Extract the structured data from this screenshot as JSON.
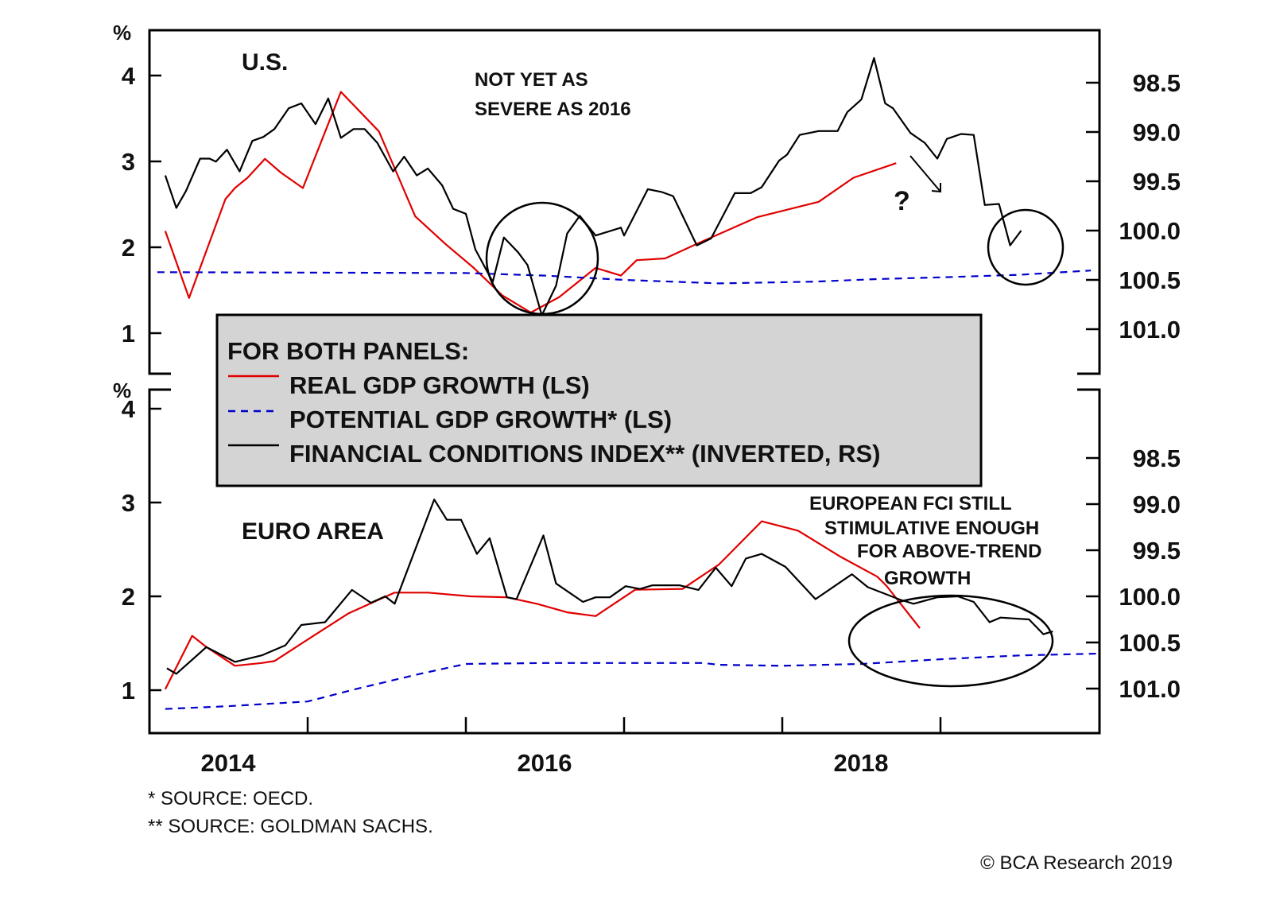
{
  "chart_data": [
    {
      "type": "line",
      "panel_title": "U.S.",
      "left_unit": "%",
      "left_ticks": [
        "4",
        "3",
        "2",
        "1"
      ],
      "right_ticks": [
        "98.5",
        "99.0",
        "99.5",
        "100.0",
        "100.5",
        "101.0"
      ],
      "right_axis_inverted": true,
      "xlim": [
        2014,
        2020
      ],
      "annotations": [
        "NOT YET AS",
        "SEVERE AS 2016",
        "?"
      ],
      "series": [
        {
          "key": "real_gdp",
          "axis": "left",
          "color": "#e00000",
          "style": "solid",
          "points": [
            [
              2014.1,
              2.19
            ],
            [
              2014.25,
              1.41
            ],
            [
              2014.48,
              2.56
            ],
            [
              2014.54,
              2.69
            ],
            [
              2014.62,
              2.81
            ],
            [
              2014.73,
              3.03
            ],
            [
              2014.83,
              2.87
            ],
            [
              2014.97,
              2.69
            ],
            [
              2015.21,
              3.81
            ],
            [
              2015.45,
              3.35
            ],
            [
              2015.68,
              2.36
            ],
            [
              2015.87,
              2.04
            ],
            [
              2016.05,
              1.76
            ],
            [
              2016.23,
              1.44
            ],
            [
              2016.41,
              1.24
            ],
            [
              2016.59,
              1.42
            ],
            [
              2016.82,
              1.76
            ],
            [
              2016.98,
              1.67
            ],
            [
              2017.08,
              1.85
            ],
            [
              2017.26,
              1.87
            ],
            [
              2017.46,
              2.04
            ],
            [
              2017.84,
              2.35
            ],
            [
              2018.23,
              2.53
            ],
            [
              2018.45,
              2.81
            ],
            [
              2018.72,
              2.98
            ]
          ]
        },
        {
          "key": "potential_gdp",
          "axis": "left",
          "color": "#0000cc",
          "style": "dashed",
          "points": [
            [
              2014.05,
              1.71
            ],
            [
              2016.0,
              1.7
            ],
            [
              2016.5,
              1.67
            ],
            [
              2017.0,
              1.62
            ],
            [
              2017.6,
              1.58
            ],
            [
              2018.2,
              1.6
            ],
            [
              2018.6,
              1.63
            ],
            [
              2019.0,
              1.65
            ],
            [
              2019.5,
              1.68
            ],
            [
              2019.95,
              1.73
            ]
          ]
        },
        {
          "key": "fci",
          "axis": "right",
          "color": "#000000",
          "style": "solid",
          "points": [
            [
              2014.1,
              99.44
            ],
            [
              2014.17,
              99.77
            ],
            [
              2014.23,
              99.6
            ],
            [
              2014.32,
              99.27
            ],
            [
              2014.38,
              99.27
            ],
            [
              2014.42,
              99.3
            ],
            [
              2014.49,
              99.18
            ],
            [
              2014.57,
              99.4
            ],
            [
              2014.65,
              99.09
            ],
            [
              2014.72,
              99.05
            ],
            [
              2014.79,
              98.97
            ],
            [
              2014.88,
              98.76
            ],
            [
              2014.96,
              98.71
            ],
            [
              2015.05,
              98.92
            ],
            [
              2015.13,
              98.66
            ],
            [
              2015.21,
              99.06
            ],
            [
              2015.29,
              98.97
            ],
            [
              2015.36,
              98.97
            ],
            [
              2015.44,
              99.11
            ],
            [
              2015.54,
              99.4
            ],
            [
              2015.61,
              99.25
            ],
            [
              2015.69,
              99.44
            ],
            [
              2015.76,
              99.37
            ],
            [
              2015.85,
              99.54
            ],
            [
              2015.92,
              99.78
            ],
            [
              2016.0,
              99.83
            ],
            [
              2016.06,
              100.19
            ],
            [
              2016.17,
              100.52
            ],
            [
              2016.24,
              100.07
            ],
            [
              2016.33,
              100.22
            ],
            [
              2016.39,
              100.35
            ],
            [
              2016.48,
              100.86
            ],
            [
              2016.57,
              100.56
            ],
            [
              2016.64,
              100.03
            ],
            [
              2016.72,
              99.85
            ],
            [
              2016.82,
              100.05
            ],
            [
              2016.98,
              99.97
            ],
            [
              2017.0,
              100.05
            ],
            [
              2017.15,
              99.58
            ],
            [
              2017.24,
              99.61
            ],
            [
              2017.31,
              99.65
            ],
            [
              2017.46,
              100.15
            ],
            [
              2017.55,
              100.08
            ],
            [
              2017.7,
              99.62
            ],
            [
              2017.8,
              99.62
            ],
            [
              2017.87,
              99.56
            ],
            [
              2017.98,
              99.29
            ],
            [
              2018.03,
              99.23
            ],
            [
              2018.11,
              99.03
            ],
            [
              2018.23,
              98.99
            ],
            [
              2018.35,
              98.99
            ],
            [
              2018.41,
              98.8
            ],
            [
              2018.5,
              98.67
            ],
            [
              2018.58,
              98.25
            ],
            [
              2018.65,
              98.71
            ],
            [
              2018.7,
              98.76
            ],
            [
              2018.81,
              99.01
            ],
            [
              2018.9,
              99.11
            ],
            [
              2018.98,
              99.27
            ],
            [
              2019.04,
              99.07
            ],
            [
              2019.13,
              99.02
            ],
            [
              2019.21,
              99.03
            ],
            [
              2019.28,
              99.74
            ],
            [
              2019.37,
              99.73
            ],
            [
              2019.44,
              100.15
            ],
            [
              2019.51,
              100.0
            ]
          ]
        }
      ]
    },
    {
      "type": "line",
      "panel_title": "EURO AREA",
      "left_unit": "%",
      "left_ticks": [
        "4",
        "3",
        "2",
        "1"
      ],
      "right_ticks": [
        "98.5",
        "99.0",
        "99.5",
        "100.0",
        "100.5",
        "101.0"
      ],
      "right_axis_inverted": true,
      "xlim": [
        2014,
        2020
      ],
      "x_tick_labels": [
        "2014",
        "2016",
        "2018"
      ],
      "annotations": [
        "EUROPEAN FCI STILL",
        "STIMULATIVE ENOUGH",
        "FOR ABOVE-TREND",
        "GROWTH"
      ],
      "series": [
        {
          "key": "real_gdp",
          "axis": "left",
          "color": "#e00000",
          "style": "solid",
          "points": [
            [
              2014.1,
              1.01
            ],
            [
              2014.27,
              1.58
            ],
            [
              2014.36,
              1.46
            ],
            [
              2014.54,
              1.26
            ],
            [
              2014.71,
              1.29
            ],
            [
              2014.79,
              1.31
            ],
            [
              2015.0,
              1.54
            ],
            [
              2015.26,
              1.82
            ],
            [
              2015.55,
              2.04
            ],
            [
              2015.76,
              2.04
            ],
            [
              2016.03,
              2.0
            ],
            [
              2016.26,
              1.99
            ],
            [
              2016.45,
              1.92
            ],
            [
              2016.64,
              1.83
            ],
            [
              2016.82,
              1.79
            ],
            [
              2017.07,
              2.07
            ],
            [
              2017.37,
              2.08
            ],
            [
              2017.6,
              2.34
            ],
            [
              2017.87,
              2.8
            ],
            [
              2018.1,
              2.7
            ],
            [
              2018.37,
              2.42
            ],
            [
              2018.6,
              2.21
            ],
            [
              2018.66,
              2.11
            ],
            [
              2018.87,
              1.66
            ]
          ]
        },
        {
          "key": "potential_gdp",
          "axis": "left",
          "color": "#0000cc",
          "style": "dashed",
          "points": [
            [
              2014.1,
              0.8
            ],
            [
              2014.5,
              0.83
            ],
            [
              2015.0,
              0.88
            ],
            [
              2015.3,
              1.01
            ],
            [
              2015.7,
              1.17
            ],
            [
              2016.0,
              1.28
            ],
            [
              2016.5,
              1.29
            ],
            [
              2017.0,
              1.29
            ],
            [
              2017.5,
              1.29
            ],
            [
              2017.6,
              1.27
            ],
            [
              2018.0,
              1.26
            ],
            [
              2018.5,
              1.28
            ],
            [
              2019.0,
              1.33
            ],
            [
              2019.5,
              1.37
            ],
            [
              2020.0,
              1.39
            ]
          ]
        },
        {
          "key": "fci",
          "axis": "right",
          "color": "#000000",
          "style": "solid",
          "points": [
            [
              2014.11,
              100.78
            ],
            [
              2014.17,
              100.84
            ],
            [
              2014.36,
              100.55
            ],
            [
              2014.54,
              100.71
            ],
            [
              2014.71,
              100.64
            ],
            [
              2014.86,
              100.53
            ],
            [
              2014.96,
              100.31
            ],
            [
              2015.11,
              100.28
            ],
            [
              2015.28,
              99.93
            ],
            [
              2015.4,
              100.07
            ],
            [
              2015.49,
              100.0
            ],
            [
              2015.55,
              100.08
            ],
            [
              2015.8,
              98.95
            ],
            [
              2015.88,
              99.17
            ],
            [
              2015.97,
              99.17
            ],
            [
              2016.07,
              99.54
            ],
            [
              2016.15,
              99.37
            ],
            [
              2016.26,
              100.01
            ],
            [
              2016.32,
              100.03
            ],
            [
              2016.49,
              99.34
            ],
            [
              2016.57,
              99.86
            ],
            [
              2016.74,
              100.06
            ],
            [
              2016.82,
              100.01
            ],
            [
              2016.91,
              100.01
            ],
            [
              2017.01,
              99.89
            ],
            [
              2017.1,
              99.92
            ],
            [
              2017.18,
              99.88
            ],
            [
              2017.35,
              99.88
            ],
            [
              2017.47,
              99.93
            ],
            [
              2017.58,
              99.69
            ],
            [
              2017.68,
              99.89
            ],
            [
              2017.77,
              99.59
            ],
            [
              2017.87,
              99.54
            ],
            [
              2018.02,
              99.68
            ],
            [
              2018.21,
              100.03
            ],
            [
              2018.44,
              99.76
            ],
            [
              2018.54,
              99.9
            ],
            [
              2018.75,
              100.04
            ],
            [
              2018.83,
              100.08
            ],
            [
              2018.98,
              100.01
            ],
            [
              2019.11,
              100.0
            ],
            [
              2019.21,
              100.06
            ],
            [
              2019.31,
              100.28
            ],
            [
              2019.38,
              100.23
            ],
            [
              2019.56,
              100.25
            ],
            [
              2019.65,
              100.41
            ],
            [
              2019.71,
              100.38
            ]
          ]
        }
      ]
    }
  ],
  "legend": {
    "title": "FOR BOTH PANELS:",
    "items": [
      {
        "label": "REAL GDP GROWTH (LS)",
        "color": "#e00000",
        "style": "solid"
      },
      {
        "label": "POTENTIAL GDP GROWTH* (LS)",
        "color": "#0000cc",
        "style": "dashed"
      },
      {
        "label": "FINANCIAL CONDITIONS INDEX** (INVERTED, RS)",
        "color": "#000000",
        "style": "solid"
      }
    ]
  },
  "footnotes": [
    "*  SOURCE: OECD.",
    "** SOURCE: GOLDMAN SACHS."
  ],
  "copyright": "© BCA Research 2019"
}
